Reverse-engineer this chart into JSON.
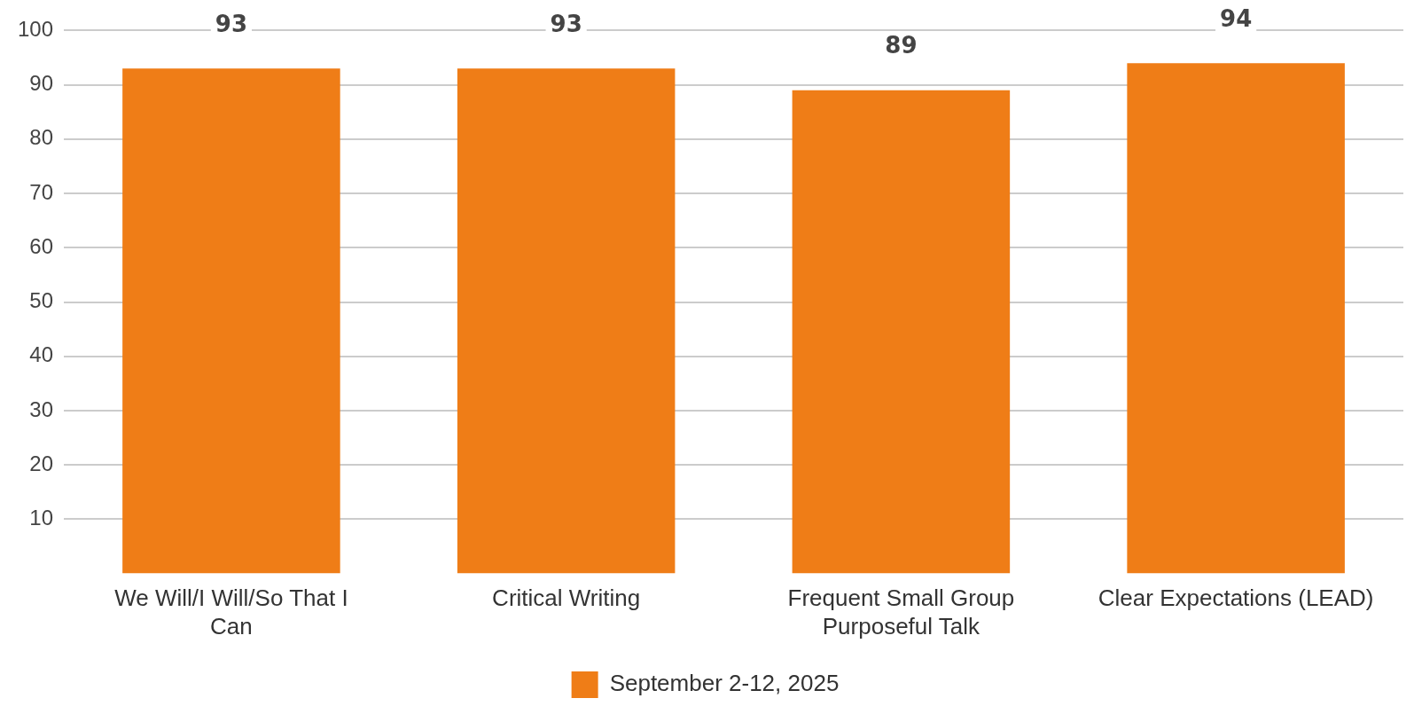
{
  "chart_data": {
    "type": "bar",
    "categories": [
      "We Will/I Will/So That I Can",
      "Critical Writing",
      "Frequent Small Group Purposeful Talk",
      "Clear Expectations (LEAD)"
    ],
    "series": [
      {
        "name": "September 2-12, 2025",
        "color": "#ef7d17",
        "values": [
          93,
          93,
          89,
          94
        ]
      }
    ],
    "ylim": [
      0,
      100
    ],
    "yticks": [
      10,
      20,
      30,
      40,
      50,
      60,
      70,
      80,
      90,
      100
    ],
    "grid": "y",
    "legend": "bottom",
    "data_labels": true
  }
}
